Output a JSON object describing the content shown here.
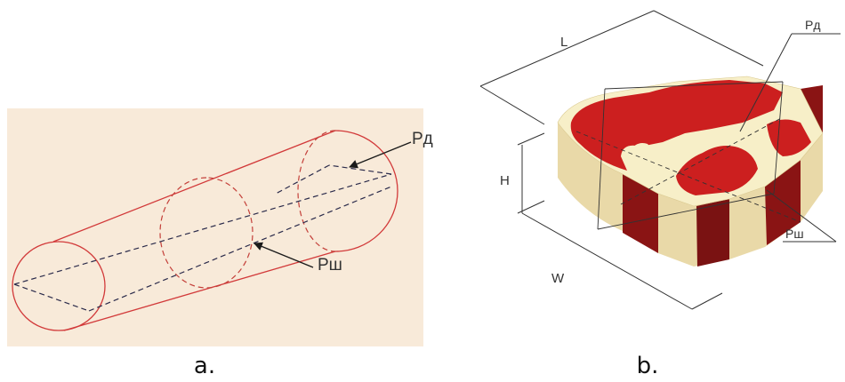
{
  "figure_a": {
    "caption": "a.",
    "label_rd": "Pд",
    "label_rsh": "Pш",
    "colors": {
      "background": "#f8ead9",
      "outline": "#d23a3a",
      "dash": "#2a2a4a",
      "arrow": "#1a1a1a"
    }
  },
  "figure_b": {
    "caption": "b.",
    "label_l": "L",
    "label_h": "H",
    "label_w": "W",
    "label_rd": "Pд",
    "label_rsh": "Pш",
    "colors": {
      "cream": "#f7efc8",
      "cream_side": "#e9d9a8",
      "red": "#cc1f1f",
      "red_dark": "#8a1414",
      "line": "#333333"
    }
  }
}
